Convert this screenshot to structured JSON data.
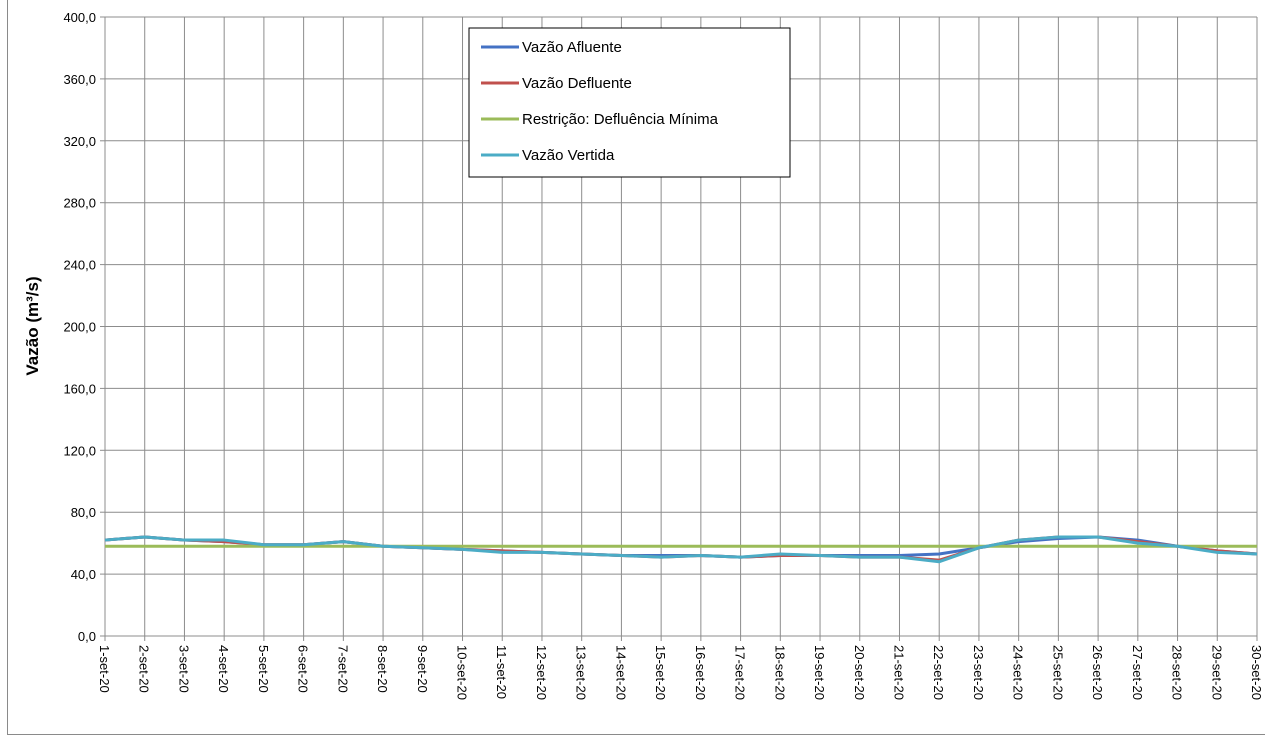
{
  "chart_data": {
    "type": "line",
    "ylabel": "Vazão (m³/s)",
    "xlabel": "",
    "title": "",
    "ylim": [
      0,
      400
    ],
    "yticks": [
      "0,0",
      "40,0",
      "80,0",
      "120,0",
      "160,0",
      "200,0",
      "240,0",
      "280,0",
      "320,0",
      "360,0",
      "400,0"
    ],
    "grid": true,
    "legend_position": "top-center",
    "categories": [
      "1-set-20",
      "2-set-20",
      "3-set-20",
      "4-set-20",
      "5-set-20",
      "6-set-20",
      "7-set-20",
      "8-set-20",
      "9-set-20",
      "10-set-20",
      "11-set-20",
      "12-set-20",
      "13-set-20",
      "14-set-20",
      "15-set-20",
      "16-set-20",
      "17-set-20",
      "18-set-20",
      "19-set-20",
      "20-set-20",
      "21-set-20",
      "22-set-20",
      "23-set-20",
      "24-set-20",
      "25-set-20",
      "26-set-20",
      "27-set-20",
      "28-set-20",
      "29-set-20",
      "30-set-20"
    ],
    "series": [
      {
        "name": "Vazão Afluente",
        "color": "#4472C4",
        "values": [
          62,
          64,
          62,
          61,
          59,
          59,
          61,
          58,
          57,
          56,
          55,
          54,
          53,
          52,
          52,
          52,
          51,
          52,
          52,
          52,
          52,
          53,
          57,
          61,
          63,
          64,
          62,
          58,
          55,
          53
        ]
      },
      {
        "name": "Vazão Defluente",
        "color": "#C0504D",
        "values": [
          62,
          64,
          62,
          61,
          59,
          59,
          61,
          58,
          57,
          56,
          55,
          54,
          53,
          52,
          51,
          52,
          51,
          52,
          52,
          51,
          51,
          49,
          57,
          62,
          64,
          64,
          61,
          58,
          55,
          53
        ]
      },
      {
        "name": "Restrição: Defluência Mínima",
        "color": "#9BBB59",
        "values": [
          58,
          58,
          58,
          58,
          58,
          58,
          58,
          58,
          58,
          58,
          58,
          58,
          58,
          58,
          58,
          58,
          58,
          58,
          58,
          58,
          58,
          58,
          58,
          58,
          58,
          58,
          58,
          58,
          58,
          58
        ]
      },
      {
        "name": "Vazão Vertida",
        "color": "#4BACC6",
        "values": [
          62,
          64,
          62,
          62,
          59,
          59,
          61,
          58,
          57,
          56,
          54,
          54,
          53,
          52,
          51,
          52,
          51,
          53,
          52,
          51,
          51,
          48,
          57,
          62,
          64,
          64,
          60,
          58,
          54,
          53
        ]
      }
    ]
  }
}
